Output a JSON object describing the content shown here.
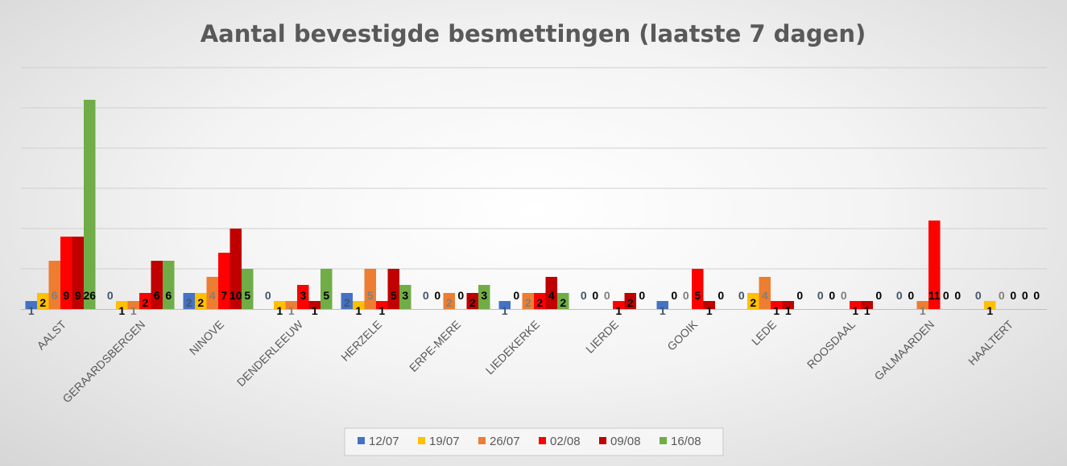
{
  "chart_data": {
    "type": "bar",
    "title": "Aantal bevestigde besmettingen (laatste 7 dagen)",
    "xlabel": "",
    "ylabel": "",
    "ylim": [
      0,
      30
    ],
    "grid": true,
    "legend_position": "bottom",
    "categories": [
      "AALST",
      "GERAARDSBERGEN",
      "NINOVE",
      "DENDERLEEUW",
      "HERZELE",
      "ERPE-MERE",
      "LIEDEKERKE",
      "LIERDE",
      "GOOIK",
      "LEDE",
      "ROOSDAAL",
      "GALMAARDEN",
      "HAALTERT"
    ],
    "series": [
      {
        "name": "12/07",
        "color": "#4472C4",
        "label_color": "#44546A",
        "values": [
          1,
          0,
          2,
          0,
          2,
          0,
          1,
          0,
          1,
          0,
          0,
          0,
          0
        ]
      },
      {
        "name": "19/07",
        "color": "#FFC000",
        "label_color": "#000000",
        "values": [
          2,
          1,
          2,
          1,
          1,
          0,
          0,
          0,
          0,
          2,
          0,
          0,
          1
        ]
      },
      {
        "name": "26/07",
        "color": "#ED7D31",
        "label_color": "#7F7F7F",
        "values": [
          6,
          1,
          4,
          1,
          5,
          2,
          2,
          0,
          0,
          4,
          0,
          1,
          0
        ]
      },
      {
        "name": "02/08",
        "color": "#FF0000",
        "label_color": "#000000",
        "values": [
          9,
          2,
          7,
          3,
          1,
          0,
          2,
          1,
          5,
          1,
          1,
          11,
          0
        ]
      },
      {
        "name": "09/08",
        "color": "#C00000",
        "label_color": "#000000",
        "values": [
          9,
          6,
          10,
          1,
          5,
          2,
          4,
          2,
          1,
          1,
          1,
          0,
          0
        ]
      },
      {
        "name": "16/08",
        "color": "#70AD47",
        "label_color": "#000000",
        "values": [
          26,
          6,
          5,
          5,
          3,
          3,
          2,
          0,
          0,
          0,
          0,
          0,
          0
        ]
      }
    ]
  }
}
